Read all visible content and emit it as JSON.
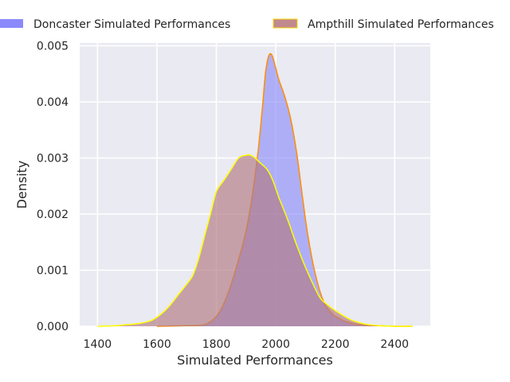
{
  "chart_data": {
    "type": "area",
    "title": "",
    "xlabel": "Simulated Performances",
    "ylabel": "Density",
    "xlim": [
      1340,
      2520
    ],
    "ylim": [
      0,
      0.00505
    ],
    "x_ticks": [
      1400,
      1600,
      1800,
      2000,
      2200,
      2400
    ],
    "y_ticks": [
      0,
      0.001,
      0.002,
      0.003,
      0.004,
      0.005
    ],
    "x_tick_labels": [
      "1400",
      "1600",
      "1800",
      "2000",
      "2200",
      "2400"
    ],
    "y_tick_labels": [
      "0.000",
      "0.001",
      "0.002",
      "0.003",
      "0.004",
      "0.005"
    ],
    "grid": true,
    "legend_position": "top",
    "legend": [
      {
        "label": "Doncaster Simulated Performances",
        "color": "#8a8afb"
      },
      {
        "label": "Ampthill Simulated Performances",
        "color": "#c08a8f"
      }
    ],
    "series": [
      {
        "name": "Doncaster Simulated Performances",
        "fill": "#8f8ff9",
        "edge": "#ff8c00",
        "x": [
          1600,
          1700,
          1750,
          1780,
          1810,
          1840,
          1870,
          1900,
          1920,
          1940,
          1955,
          1965,
          1975,
          1985,
          1995,
          2010,
          2030,
          2050,
          2070,
          2085,
          2100,
          2115,
          2130,
          2150,
          2170,
          2200,
          2250,
          2300,
          2350,
          2400,
          2460
        ],
        "y": [
          0,
          1e-05,
          2e-05,
          8e-05,
          0.00025,
          0.0006,
          0.0011,
          0.0017,
          0.0023,
          0.0031,
          0.0039,
          0.0045,
          0.0048,
          0.00485,
          0.0047,
          0.0044,
          0.0041,
          0.0037,
          0.0031,
          0.0025,
          0.0019,
          0.0014,
          0.001,
          0.0006,
          0.00035,
          0.00018,
          6e-05,
          2e-05,
          1e-05,
          0,
          0
        ]
      },
      {
        "name": "Ampthill Simulated Performances",
        "fill": "#b27a82",
        "edge": "#ffff00",
        "x": [
          1400,
          1460,
          1500,
          1540,
          1580,
          1610,
          1640,
          1670,
          1700,
          1720,
          1740,
          1760,
          1780,
          1800,
          1825,
          1850,
          1875,
          1900,
          1915,
          1930,
          1950,
          1970,
          1990,
          2010,
          2040,
          2070,
          2100,
          2130,
          2150,
          2170,
          2200,
          2230,
          2260,
          2300,
          2350,
          2400,
          2460
        ],
        "y": [
          0,
          1e-05,
          3e-05,
          5e-05,
          0.0001,
          0.0002,
          0.00035,
          0.00055,
          0.00075,
          0.0009,
          0.0012,
          0.0016,
          0.002,
          0.0024,
          0.0026,
          0.0028,
          0.003,
          0.00305,
          0.00305,
          0.003,
          0.0029,
          0.0028,
          0.0026,
          0.0023,
          0.0019,
          0.00145,
          0.00105,
          0.0007,
          0.0005,
          0.0004,
          0.00028,
          0.00018,
          0.0001,
          4e-05,
          1e-05,
          0,
          0
        ]
      }
    ]
  }
}
